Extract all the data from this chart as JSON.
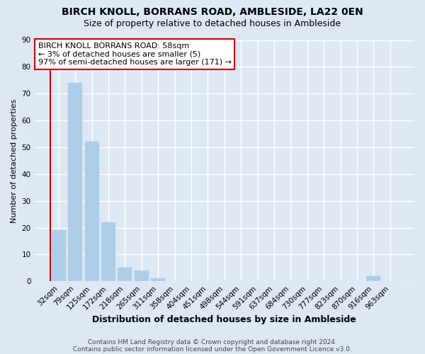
{
  "title": "BIRCH KNOLL, BORRANS ROAD, AMBLESIDE, LA22 0EN",
  "subtitle": "Size of property relative to detached houses in Ambleside",
  "xlabel": "Distribution of detached houses by size in Ambleside",
  "ylabel": "Number of detached properties",
  "bin_labels": [
    "32sqm",
    "79sqm",
    "125sqm",
    "172sqm",
    "218sqm",
    "265sqm",
    "311sqm",
    "358sqm",
    "404sqm",
    "451sqm",
    "498sqm",
    "544sqm",
    "591sqm",
    "637sqm",
    "684sqm",
    "730sqm",
    "777sqm",
    "823sqm",
    "870sqm",
    "916sqm",
    "963sqm"
  ],
  "bar_values": [
    19,
    74,
    52,
    22,
    5,
    4,
    1,
    0,
    0,
    0,
    0,
    0,
    0,
    0,
    0,
    0,
    0,
    0,
    0,
    2,
    0
  ],
  "bar_color": "#aecde8",
  "bar_edge_color": "#aecde8",
  "ylim": [
    0,
    90
  ],
  "yticks": [
    0,
    10,
    20,
    30,
    40,
    50,
    60,
    70,
    80,
    90
  ],
  "annotation_line1": "BIRCH KNOLL BORRANS ROAD: 58sqm",
  "annotation_line2": "← 3% of detached houses are smaller (5)",
  "annotation_line3": "97% of semi-detached houses are larger (171) →",
  "annotation_box_color": "#ffffff",
  "annotation_box_edgecolor": "#cc0000",
  "red_line_x": -0.5,
  "footer_line1": "Contains HM Land Registry data © Crown copyright and database right 2024.",
  "footer_line2": "Contains public sector information licensed under the Open Government Licence v3.0.",
  "background_color": "#dde8f4",
  "grid_color": "#ffffff",
  "title_fontsize": 10,
  "subtitle_fontsize": 9,
  "xlabel_fontsize": 9,
  "ylabel_fontsize": 8,
  "tick_fontsize": 7.5,
  "footer_fontsize": 6.5,
  "annotation_fontsize": 8
}
